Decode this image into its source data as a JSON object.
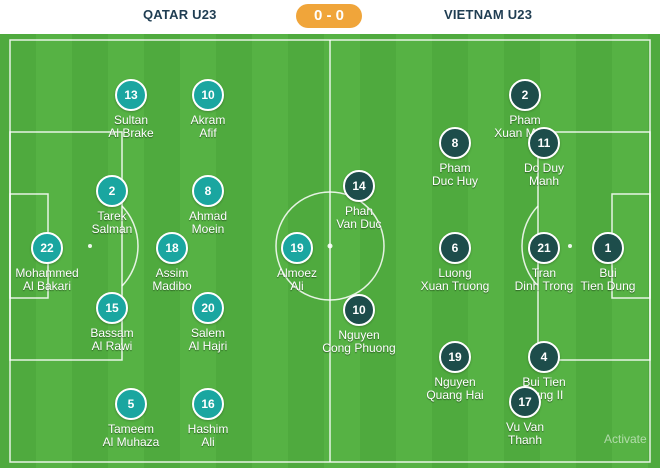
{
  "match": {
    "home_team": "QATAR U23",
    "away_team": "VIETNAM U23",
    "score": "0 - 0",
    "watermark": "Activate"
  },
  "colors": {
    "home_dot": "#1aa6a0",
    "away_dot": "#1d4d4b",
    "score_badge": "#f0a53a",
    "pitch": "#4faa3e"
  },
  "home_players": [
    {
      "number": "22",
      "line1": "Mohammed",
      "line2": "Al Bakari"
    },
    {
      "number": "2",
      "line1": "Tarek",
      "line2": "Salman"
    },
    {
      "number": "15",
      "line1": "Bassam",
      "line2": "Al Rawi"
    },
    {
      "number": "13",
      "line1": "Sultan",
      "line2": "Al Brake"
    },
    {
      "number": "5",
      "line1": "Tameem",
      "line2": "Al Muhaza"
    },
    {
      "number": "18",
      "line1": "Assim",
      "line2": "Madibo"
    },
    {
      "number": "10",
      "line1": "Akram",
      "line2": "Afif"
    },
    {
      "number": "8",
      "line1": "Ahmad",
      "line2": "Moein"
    },
    {
      "number": "20",
      "line1": "Salem",
      "line2": "Al Hajri"
    },
    {
      "number": "16",
      "line1": "Hashim",
      "line2": "Ali"
    },
    {
      "number": "19",
      "line1": "Almoez",
      "line2": "Ali"
    }
  ],
  "away_players": [
    {
      "number": "1",
      "line1": "Bui",
      "line2": "Tien Dung"
    },
    {
      "number": "21",
      "line1": "Tran",
      "line2": "Dinh Trong"
    },
    {
      "number": "2",
      "line1": "Pham",
      "line2": "Xuan Manh"
    },
    {
      "number": "11",
      "line1": "Do Duy",
      "line2": "Manh"
    },
    {
      "number": "4",
      "line1": "Bui Tien",
      "line2": "Dung II"
    },
    {
      "number": "17",
      "line1": "Vu Van",
      "line2": "Thanh"
    },
    {
      "number": "8",
      "line1": "Pham",
      "line2": "Duc Huy"
    },
    {
      "number": "6",
      "line1": "Luong",
      "line2": "Xuan Truong"
    },
    {
      "number": "19",
      "line1": "Nguyen",
      "line2": "Quang Hai"
    },
    {
      "number": "14",
      "line1": "Phan",
      "line2": "Van Duc"
    },
    {
      "number": "10",
      "line1": "Nguyen",
      "line2": "Cong Phuong"
    }
  ]
}
